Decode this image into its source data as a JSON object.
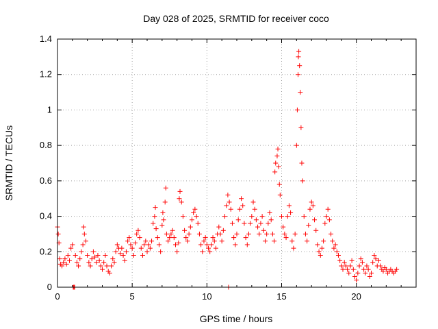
{
  "chart_data": {
    "type": "scatter",
    "title": "Day 028 of 2025, SRMTID for receiver coco",
    "xlabel": "GPS time / hours",
    "ylabel": "SRMTID / TECUs",
    "xlim": [
      0,
      24
    ],
    "ylim": [
      0,
      1.4
    ],
    "grid": true,
    "marker": "+",
    "color": "#ff0000",
    "xticks": [
      {
        "value": 0,
        "label": "0"
      },
      {
        "value": 5,
        "label": "5"
      },
      {
        "value": 10,
        "label": "10"
      },
      {
        "value": 15,
        "label": "15"
      },
      {
        "value": 20,
        "label": "20"
      }
    ],
    "yticks": [
      {
        "value": 0,
        "label": "0"
      },
      {
        "value": 0.2,
        "label": "0.2"
      },
      {
        "value": 0.4,
        "label": "0.4"
      },
      {
        "value": 0.6,
        "label": "0.6"
      },
      {
        "value": 0.8,
        "label": "0.8"
      },
      {
        "value": 1.0,
        "label": "1"
      },
      {
        "value": 1.2,
        "label": "1.2"
      },
      {
        "value": 1.4,
        "label": "1.4"
      }
    ],
    "series": [
      {
        "name": "SRMTID",
        "points": [
          [
            0.0,
            0.34
          ],
          [
            0.05,
            0.3
          ],
          [
            0.1,
            0.25
          ],
          [
            0.15,
            0.16
          ],
          [
            0.2,
            0.13
          ],
          [
            0.3,
            0.12
          ],
          [
            0.4,
            0.14
          ],
          [
            0.5,
            0.16
          ],
          [
            0.6,
            0.13
          ],
          [
            0.7,
            0.18
          ],
          [
            0.8,
            0.15
          ],
          [
            0.9,
            0.22
          ],
          [
            1.0,
            0.24
          ],
          [
            1.05,
            0.0
          ],
          [
            1.1,
            0.0
          ],
          [
            1.15,
            0.0
          ],
          [
            1.2,
            0.18
          ],
          [
            1.3,
            0.14
          ],
          [
            1.4,
            0.12
          ],
          [
            1.5,
            0.16
          ],
          [
            1.6,
            0.2
          ],
          [
            1.7,
            0.24
          ],
          [
            1.75,
            0.34
          ],
          [
            1.8,
            0.3
          ],
          [
            1.9,
            0.26
          ],
          [
            2.0,
            0.18
          ],
          [
            2.1,
            0.14
          ],
          [
            2.2,
            0.12
          ],
          [
            2.3,
            0.16
          ],
          [
            2.4,
            0.2
          ],
          [
            2.5,
            0.17
          ],
          [
            2.6,
            0.14
          ],
          [
            2.7,
            0.18
          ],
          [
            2.8,
            0.15
          ],
          [
            2.9,
            0.12
          ],
          [
            3.0,
            0.1
          ],
          [
            3.1,
            0.14
          ],
          [
            3.2,
            0.18
          ],
          [
            3.3,
            0.12
          ],
          [
            3.4,
            0.09
          ],
          [
            3.5,
            0.08
          ],
          [
            3.6,
            0.12
          ],
          [
            3.7,
            0.16
          ],
          [
            3.8,
            0.14
          ],
          [
            3.9,
            0.2
          ],
          [
            4.0,
            0.24
          ],
          [
            4.1,
            0.22
          ],
          [
            4.2,
            0.19
          ],
          [
            4.3,
            0.22
          ],
          [
            4.4,
            0.18
          ],
          [
            4.5,
            0.15
          ],
          [
            4.6,
            0.2
          ],
          [
            4.7,
            0.26
          ],
          [
            4.8,
            0.28
          ],
          [
            4.9,
            0.24
          ],
          [
            5.0,
            0.22
          ],
          [
            5.1,
            0.18
          ],
          [
            5.2,
            0.25
          ],
          [
            5.3,
            0.3
          ],
          [
            5.4,
            0.32
          ],
          [
            5.5,
            0.28
          ],
          [
            5.6,
            0.22
          ],
          [
            5.7,
            0.18
          ],
          [
            5.8,
            0.24
          ],
          [
            5.9,
            0.26
          ],
          [
            6.0,
            0.2
          ],
          [
            6.1,
            0.24
          ],
          [
            6.2,
            0.22
          ],
          [
            6.3,
            0.26
          ],
          [
            6.4,
            0.36
          ],
          [
            6.5,
            0.4
          ],
          [
            6.55,
            0.45
          ],
          [
            6.6,
            0.33
          ],
          [
            6.7,
            0.28
          ],
          [
            6.8,
            0.24
          ],
          [
            6.9,
            0.2
          ],
          [
            7.0,
            0.35
          ],
          [
            7.05,
            0.42
          ],
          [
            7.1,
            0.38
          ],
          [
            7.2,
            0.48
          ],
          [
            7.25,
            0.56
          ],
          [
            7.3,
            0.3
          ],
          [
            7.4,
            0.26
          ],
          [
            7.5,
            0.28
          ],
          [
            7.6,
            0.3
          ],
          [
            7.7,
            0.32
          ],
          [
            7.8,
            0.28
          ],
          [
            7.9,
            0.24
          ],
          [
            8.0,
            0.2
          ],
          [
            8.1,
            0.25
          ],
          [
            8.15,
            0.5
          ],
          [
            8.2,
            0.54
          ],
          [
            8.3,
            0.48
          ],
          [
            8.4,
            0.4
          ],
          [
            8.5,
            0.32
          ],
          [
            8.6,
            0.28
          ],
          [
            8.7,
            0.26
          ],
          [
            8.8,
            0.3
          ],
          [
            8.9,
            0.34
          ],
          [
            9.0,
            0.38
          ],
          [
            9.1,
            0.42
          ],
          [
            9.2,
            0.44
          ],
          [
            9.3,
            0.4
          ],
          [
            9.4,
            0.36
          ],
          [
            9.5,
            0.3
          ],
          [
            9.6,
            0.24
          ],
          [
            9.7,
            0.2
          ],
          [
            9.8,
            0.26
          ],
          [
            9.9,
            0.28
          ],
          [
            10.0,
            0.24
          ],
          [
            10.1,
            0.22
          ],
          [
            10.2,
            0.2
          ],
          [
            10.3,
            0.24
          ],
          [
            10.4,
            0.28
          ],
          [
            10.5,
            0.26
          ],
          [
            10.6,
            0.22
          ],
          [
            10.7,
            0.3
          ],
          [
            10.8,
            0.34
          ],
          [
            10.9,
            0.3
          ],
          [
            11.0,
            0.26
          ],
          [
            11.1,
            0.32
          ],
          [
            11.2,
            0.4
          ],
          [
            11.3,
            0.46
          ],
          [
            11.4,
            0.52
          ],
          [
            11.45,
            0.0
          ],
          [
            11.5,
            0.48
          ],
          [
            11.6,
            0.44
          ],
          [
            11.7,
            0.36
          ],
          [
            11.8,
            0.28
          ],
          [
            11.9,
            0.24
          ],
          [
            12.0,
            0.3
          ],
          [
            12.1,
            0.38
          ],
          [
            12.2,
            0.44
          ],
          [
            12.3,
            0.5
          ],
          [
            12.4,
            0.46
          ],
          [
            12.5,
            0.36
          ],
          [
            12.6,
            0.28
          ],
          [
            12.7,
            0.24
          ],
          [
            12.8,
            0.3
          ],
          [
            12.9,
            0.36
          ],
          [
            13.0,
            0.4
          ],
          [
            13.1,
            0.48
          ],
          [
            13.2,
            0.44
          ],
          [
            13.3,
            0.38
          ],
          [
            13.4,
            0.34
          ],
          [
            13.5,
            0.3
          ],
          [
            13.6,
            0.36
          ],
          [
            13.7,
            0.4
          ],
          [
            13.8,
            0.32
          ],
          [
            13.9,
            0.26
          ],
          [
            14.0,
            0.3
          ],
          [
            14.1,
            0.36
          ],
          [
            14.2,
            0.42
          ],
          [
            14.3,
            0.38
          ],
          [
            14.4,
            0.3
          ],
          [
            14.5,
            0.26
          ],
          [
            14.55,
            0.65
          ],
          [
            14.6,
            0.7
          ],
          [
            14.7,
            0.74
          ],
          [
            14.75,
            0.78
          ],
          [
            14.8,
            0.68
          ],
          [
            14.85,
            0.58
          ],
          [
            14.9,
            0.52
          ],
          [
            15.0,
            0.4
          ],
          [
            15.1,
            0.34
          ],
          [
            15.2,
            0.3
          ],
          [
            15.3,
            0.28
          ],
          [
            15.4,
            0.4
          ],
          [
            15.5,
            0.46
          ],
          [
            15.6,
            0.42
          ],
          [
            15.7,
            0.26
          ],
          [
            15.8,
            0.22
          ],
          [
            15.9,
            0.3
          ],
          [
            16.0,
            0.8
          ],
          [
            16.05,
            1.0
          ],
          [
            16.1,
            1.2
          ],
          [
            16.12,
            1.3
          ],
          [
            16.15,
            1.33
          ],
          [
            16.2,
            1.25
          ],
          [
            16.25,
            1.1
          ],
          [
            16.3,
            0.9
          ],
          [
            16.35,
            0.7
          ],
          [
            16.4,
            0.6
          ],
          [
            16.5,
            0.4
          ],
          [
            16.6,
            0.3
          ],
          [
            16.7,
            0.26
          ],
          [
            16.8,
            0.35
          ],
          [
            16.9,
            0.44
          ],
          [
            17.0,
            0.48
          ],
          [
            17.1,
            0.46
          ],
          [
            17.2,
            0.38
          ],
          [
            17.3,
            0.32
          ],
          [
            17.4,
            0.24
          ],
          [
            17.5,
            0.2
          ],
          [
            17.6,
            0.18
          ],
          [
            17.7,
            0.22
          ],
          [
            17.8,
            0.26
          ],
          [
            17.9,
            0.36
          ],
          [
            18.0,
            0.4
          ],
          [
            18.1,
            0.44
          ],
          [
            18.2,
            0.38
          ],
          [
            18.3,
            0.3
          ],
          [
            18.4,
            0.26
          ],
          [
            18.5,
            0.22
          ],
          [
            18.6,
            0.24
          ],
          [
            18.7,
            0.2
          ],
          [
            18.8,
            0.18
          ],
          [
            18.9,
            0.15
          ],
          [
            19.0,
            0.12
          ],
          [
            19.1,
            0.1
          ],
          [
            19.2,
            0.14
          ],
          [
            19.3,
            0.12
          ],
          [
            19.4,
            0.1
          ],
          [
            19.5,
            0.08
          ],
          [
            19.6,
            0.12
          ],
          [
            19.7,
            0.15
          ],
          [
            19.8,
            0.1
          ],
          [
            19.9,
            0.06
          ],
          [
            20.0,
            0.04
          ],
          [
            20.1,
            0.08
          ],
          [
            20.2,
            0.12
          ],
          [
            20.3,
            0.16
          ],
          [
            20.4,
            0.14
          ],
          [
            20.5,
            0.1
          ],
          [
            20.6,
            0.08
          ],
          [
            20.7,
            0.12
          ],
          [
            20.8,
            0.1
          ],
          [
            20.9,
            0.06
          ],
          [
            21.0,
            0.08
          ],
          [
            21.1,
            0.14
          ],
          [
            21.2,
            0.18
          ],
          [
            21.3,
            0.16
          ],
          [
            21.4,
            0.12
          ],
          [
            21.5,
            0.15
          ],
          [
            21.6,
            0.12
          ],
          [
            21.7,
            0.1
          ],
          [
            21.8,
            0.09
          ],
          [
            21.9,
            0.11
          ],
          [
            22.0,
            0.1
          ],
          [
            22.1,
            0.08
          ],
          [
            22.2,
            0.09
          ],
          [
            22.3,
            0.1
          ],
          [
            22.4,
            0.09
          ],
          [
            22.5,
            0.08
          ],
          [
            22.6,
            0.09
          ],
          [
            22.7,
            0.1
          ]
        ]
      }
    ]
  }
}
